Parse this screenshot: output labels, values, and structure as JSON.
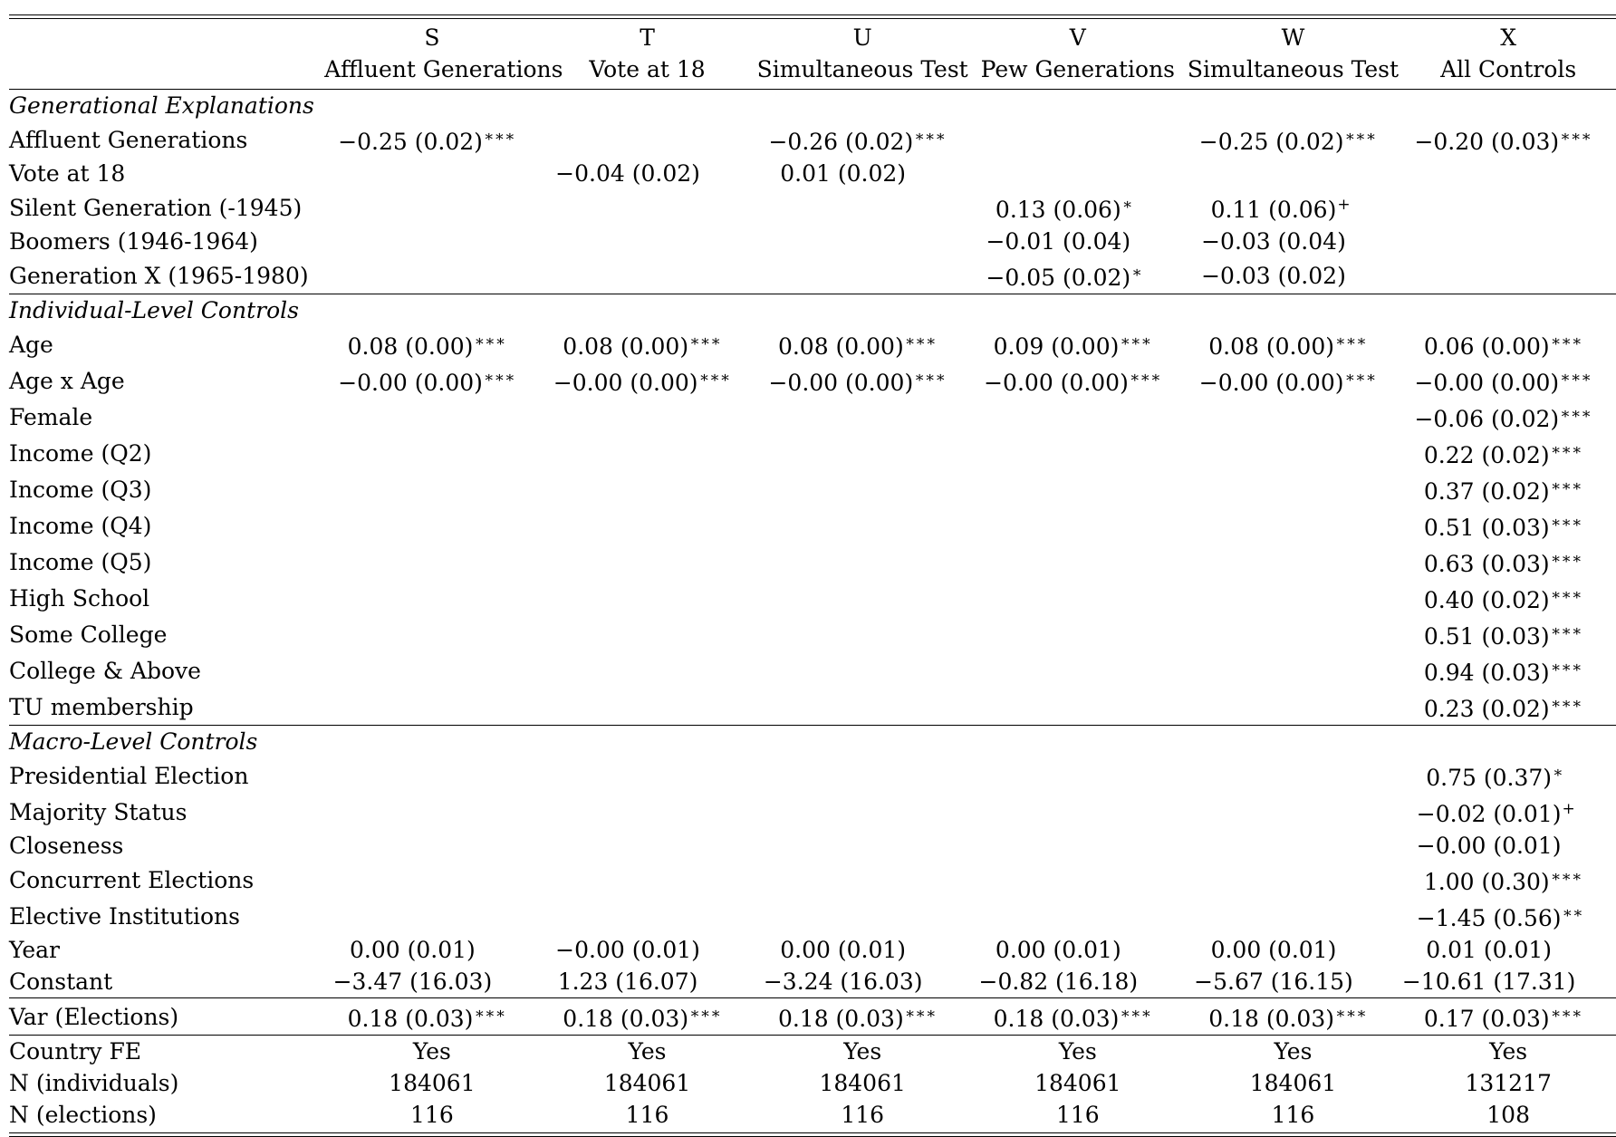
{
  "columns": [
    {
      "letter": "S",
      "name": "Affluent Generations"
    },
    {
      "letter": "T",
      "name": "Vote at 18"
    },
    {
      "letter": "U",
      "name": "Simultaneous Test"
    },
    {
      "letter": "V",
      "name": "Pew Generations"
    },
    {
      "letter": "W",
      "name": "Simultaneous Test"
    },
    {
      "letter": "X",
      "name": "All Controls"
    }
  ],
  "sections": [
    {
      "title": "Generational Explanations",
      "rows": [
        {
          "label": "Affluent Generations",
          "cells": [
            [
              "−0.25 (0.02)",
              "∗∗∗"
            ],
            [
              "",
              ""
            ],
            [
              "−0.26 (0.02)",
              "∗∗∗"
            ],
            [
              "",
              ""
            ],
            [
              "−0.25 (0.02)",
              "∗∗∗"
            ],
            [
              "−0.20 (0.03)",
              "∗∗∗"
            ]
          ]
        },
        {
          "label": "Vote at 18",
          "cells": [
            [
              "",
              ""
            ],
            [
              "−0.04 (0.02)",
              ""
            ],
            [
              "0.01 (0.02)",
              ""
            ],
            [
              "",
              ""
            ],
            [
              "",
              ""
            ],
            [
              "",
              ""
            ]
          ]
        },
        {
          "label": "Silent Generation (-1945)",
          "cells": [
            [
              "",
              ""
            ],
            [
              "",
              ""
            ],
            [
              "",
              ""
            ],
            [
              "0.13 (0.06)",
              "∗"
            ],
            [
              "0.11 (0.06)",
              "+"
            ],
            [
              "",
              ""
            ]
          ]
        },
        {
          "label": "Boomers (1946-1964)",
          "cells": [
            [
              "",
              ""
            ],
            [
              "",
              ""
            ],
            [
              "",
              ""
            ],
            [
              "−0.01 (0.04)",
              ""
            ],
            [
              "−0.03 (0.04)",
              ""
            ],
            [
              "",
              ""
            ]
          ]
        },
        {
          "label": "Generation X (1965-1980)",
          "cells": [
            [
              "",
              ""
            ],
            [
              "",
              ""
            ],
            [
              "",
              ""
            ],
            [
              "−0.05 (0.02)",
              "∗"
            ],
            [
              "−0.03 (0.02)",
              ""
            ],
            [
              "",
              ""
            ]
          ]
        }
      ]
    },
    {
      "title": "Individual-Level Controls",
      "rows": [
        {
          "label": "Age",
          "cells": [
            [
              "0.08 (0.00)",
              "∗∗∗"
            ],
            [
              "0.08 (0.00)",
              "∗∗∗"
            ],
            [
              "0.08 (0.00)",
              "∗∗∗"
            ],
            [
              "0.09 (0.00)",
              "∗∗∗"
            ],
            [
              "0.08 (0.00)",
              "∗∗∗"
            ],
            [
              "0.06 (0.00)",
              "∗∗∗"
            ]
          ]
        },
        {
          "label": "Age x Age",
          "cells": [
            [
              "−0.00 (0.00)",
              "∗∗∗"
            ],
            [
              "−0.00 (0.00)",
              "∗∗∗"
            ],
            [
              "−0.00 (0.00)",
              "∗∗∗"
            ],
            [
              "−0.00 (0.00)",
              "∗∗∗"
            ],
            [
              "−0.00 (0.00)",
              "∗∗∗"
            ],
            [
              "−0.00 (0.00)",
              "∗∗∗"
            ]
          ]
        },
        {
          "label": "Female",
          "cells": [
            [
              "",
              ""
            ],
            [
              "",
              ""
            ],
            [
              "",
              ""
            ],
            [
              "",
              ""
            ],
            [
              "",
              ""
            ],
            [
              "−0.06 (0.02)",
              "∗∗∗"
            ]
          ]
        },
        {
          "label": "Income (Q2)",
          "cells": [
            [
              "",
              ""
            ],
            [
              "",
              ""
            ],
            [
              "",
              ""
            ],
            [
              "",
              ""
            ],
            [
              "",
              ""
            ],
            [
              "0.22 (0.02)",
              "∗∗∗"
            ]
          ]
        },
        {
          "label": "Income (Q3)",
          "cells": [
            [
              "",
              ""
            ],
            [
              "",
              ""
            ],
            [
              "",
              ""
            ],
            [
              "",
              ""
            ],
            [
              "",
              ""
            ],
            [
              "0.37 (0.02)",
              "∗∗∗"
            ]
          ]
        },
        {
          "label": "Income (Q4)",
          "cells": [
            [
              "",
              ""
            ],
            [
              "",
              ""
            ],
            [
              "",
              ""
            ],
            [
              "",
              ""
            ],
            [
              "",
              ""
            ],
            [
              "0.51 (0.03)",
              "∗∗∗"
            ]
          ]
        },
        {
          "label": "Income (Q5)",
          "cells": [
            [
              "",
              ""
            ],
            [
              "",
              ""
            ],
            [
              "",
              ""
            ],
            [
              "",
              ""
            ],
            [
              "",
              ""
            ],
            [
              "0.63 (0.03)",
              "∗∗∗"
            ]
          ]
        },
        {
          "label": "High School",
          "cells": [
            [
              "",
              ""
            ],
            [
              "",
              ""
            ],
            [
              "",
              ""
            ],
            [
              "",
              ""
            ],
            [
              "",
              ""
            ],
            [
              "0.40 (0.02)",
              "∗∗∗"
            ]
          ]
        },
        {
          "label": "Some College",
          "cells": [
            [
              "",
              ""
            ],
            [
              "",
              ""
            ],
            [
              "",
              ""
            ],
            [
              "",
              ""
            ],
            [
              "",
              ""
            ],
            [
              "0.51 (0.03)",
              "∗∗∗"
            ]
          ]
        },
        {
          "label": "College & Above",
          "cells": [
            [
              "",
              ""
            ],
            [
              "",
              ""
            ],
            [
              "",
              ""
            ],
            [
              "",
              ""
            ],
            [
              "",
              ""
            ],
            [
              "0.94 (0.03)",
              "∗∗∗"
            ]
          ]
        },
        {
          "label": "TU membership",
          "cells": [
            [
              "",
              ""
            ],
            [
              "",
              ""
            ],
            [
              "",
              ""
            ],
            [
              "",
              ""
            ],
            [
              "",
              ""
            ],
            [
              "0.23 (0.02)",
              "∗∗∗"
            ]
          ]
        }
      ]
    },
    {
      "title": "Macro-Level Controls",
      "rows": [
        {
          "label": "Presidential Election",
          "cells": [
            [
              "",
              ""
            ],
            [
              "",
              ""
            ],
            [
              "",
              ""
            ],
            [
              "",
              ""
            ],
            [
              "",
              ""
            ],
            [
              "0.75 (0.37)",
              "∗"
            ]
          ]
        },
        {
          "label": "Majority Status",
          "cells": [
            [
              "",
              ""
            ],
            [
              "",
              ""
            ],
            [
              "",
              ""
            ],
            [
              "",
              ""
            ],
            [
              "",
              ""
            ],
            [
              "−0.02 (0.01)",
              "+"
            ]
          ]
        },
        {
          "label": "Closeness",
          "cells": [
            [
              "",
              ""
            ],
            [
              "",
              ""
            ],
            [
              "",
              ""
            ],
            [
              "",
              ""
            ],
            [
              "",
              ""
            ],
            [
              "−0.00 (0.01)",
              ""
            ]
          ]
        },
        {
          "label": "Concurrent Elections",
          "cells": [
            [
              "",
              ""
            ],
            [
              "",
              ""
            ],
            [
              "",
              ""
            ],
            [
              "",
              ""
            ],
            [
              "",
              ""
            ],
            [
              "1.00 (0.30)",
              "∗∗∗"
            ]
          ]
        },
        {
          "label": "Elective Institutions",
          "cells": [
            [
              "",
              ""
            ],
            [
              "",
              ""
            ],
            [
              "",
              ""
            ],
            [
              "",
              ""
            ],
            [
              "",
              ""
            ],
            [
              "−1.45 (0.56)",
              "∗∗"
            ]
          ]
        },
        {
          "label": "Year",
          "cells": [
            [
              "0.00 (0.01)",
              ""
            ],
            [
              "−0.00 (0.01)",
              ""
            ],
            [
              "0.00 (0.01)",
              ""
            ],
            [
              "0.00 (0.01)",
              ""
            ],
            [
              "0.00 (0.01)",
              ""
            ],
            [
              "0.01 (0.01)",
              ""
            ]
          ]
        },
        {
          "label": "Constant",
          "cells": [
            [
              "−3.47 (16.03)",
              ""
            ],
            [
              "1.23 (16.07)",
              ""
            ],
            [
              "−3.24 (16.03)",
              ""
            ],
            [
              "−0.82 (16.18)",
              ""
            ],
            [
              "−5.67 (16.15)",
              ""
            ],
            [
              "−10.61 (17.31)",
              ""
            ]
          ]
        }
      ]
    }
  ],
  "variance_row": {
    "label": "Var (Elections)",
    "cells": [
      [
        "0.18 (0.03)",
        "∗∗∗"
      ],
      [
        "0.18 (0.03)",
        "∗∗∗"
      ],
      [
        "0.18 (0.03)",
        "∗∗∗"
      ],
      [
        "0.18 (0.03)",
        "∗∗∗"
      ],
      [
        "0.18 (0.03)",
        "∗∗∗"
      ],
      [
        "0.17 (0.03)",
        "∗∗∗"
      ]
    ]
  },
  "footer_rows": [
    {
      "label": "Country FE",
      "values": [
        "Yes",
        "Yes",
        "Yes",
        "Yes",
        "Yes",
        "Yes"
      ]
    },
    {
      "label": "N (individuals)",
      "values": [
        "184061",
        "184061",
        "184061",
        "184061",
        "184061",
        "131217"
      ]
    },
    {
      "label": "N (elections)",
      "values": [
        "116",
        "116",
        "116",
        "116",
        "116",
        "108"
      ]
    }
  ]
}
